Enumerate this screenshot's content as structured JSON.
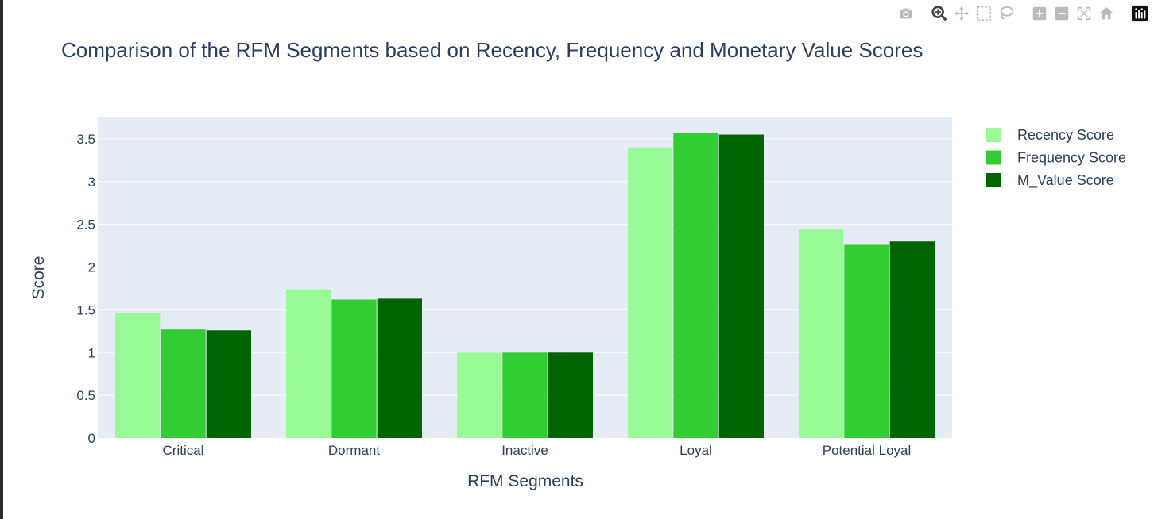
{
  "modebar": {
    "icons": [
      "camera-icon",
      "zoom-icon",
      "pan-icon",
      "box-select-icon",
      "lasso-icon",
      "zoom-in-icon",
      "zoom-out-icon",
      "autoscale-icon",
      "reset-axes-icon",
      "plotly-logo-icon"
    ]
  },
  "colors": {
    "recency": "#98fb98",
    "frequency": "#32cd32",
    "monetary": "#006400",
    "plot_bg": "#e5ecf6",
    "text": "#2a3f5f"
  },
  "chart_data": {
    "type": "bar",
    "title": "Comparison of the RFM Segments based on Recency, Frequency and Monetary Value Scores",
    "xlabel": "RFM Segments",
    "ylabel": "Score",
    "categories": [
      "Critical",
      "Dormant",
      "Inactive",
      "Loyal",
      "Potential Loyal"
    ],
    "series": [
      {
        "name": "Recency Score",
        "color": "#98fb98",
        "values": [
          1.46,
          1.74,
          1.0,
          3.4,
          2.44
        ]
      },
      {
        "name": "Frequency Score",
        "color": "#32cd32",
        "values": [
          1.27,
          1.62,
          1.0,
          3.57,
          2.26
        ]
      },
      {
        "name": "M_Value Score",
        "color": "#006400",
        "values": [
          1.26,
          1.63,
          1.0,
          3.55,
          2.3
        ]
      }
    ],
    "ylim": [
      0,
      3.75
    ],
    "yticks": [
      0,
      0.5,
      1,
      1.5,
      2,
      2.5,
      3,
      3.5
    ],
    "ytick_labels": [
      "0",
      "0.5",
      "1",
      "1.5",
      "2",
      "2.5",
      "3",
      "3.5"
    ],
    "grid": true,
    "legend": "top-right outside"
  }
}
